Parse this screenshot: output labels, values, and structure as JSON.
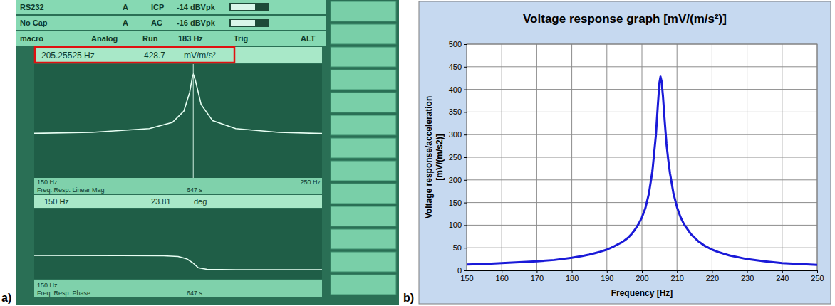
{
  "panel_labels": [
    "a)",
    "b)"
  ],
  "screen": {
    "status_rows": [
      [
        "RS232",
        "A",
        "ICP",
        "-14 dBVpk"
      ],
      [
        "No Cap",
        "A",
        "AC",
        "-16 dBVpk"
      ],
      [
        "macro",
        "Analog",
        "Run",
        "183 Hz",
        "Trig",
        "ALT"
      ]
    ],
    "readout_1": [
      "205.25525 Hz",
      "428.7",
      "mV/m/s²"
    ],
    "plot_1_footer": [
      "150 Hz",
      "Freq. Resp. Linear Mag",
      "647 s",
      "250 Hz"
    ],
    "readout_2": [
      "150 Hz",
      "23.81",
      "deg"
    ],
    "plot_2_footer": [
      "150 Hz",
      "Freq. Resp. Phase",
      "647 s"
    ],
    "cursor_x": 205.25525,
    "magnitude": {
      "type": "line",
      "xlim": [
        150,
        250
      ],
      "ylim": [
        -300,
        500
      ],
      "x": [
        150,
        170,
        190,
        198,
        202,
        204,
        205,
        205.3,
        206,
        208,
        212,
        220,
        235,
        250
      ],
      "values": [
        13,
        20,
        46,
        90,
        170,
        300,
        415,
        428,
        385,
        215,
        102,
        46,
        20,
        12
      ]
    },
    "phase": {
      "type": "line",
      "xlim": [
        150,
        250
      ],
      "ylim": [
        -270,
        600
      ],
      "x": [
        150,
        180,
        195,
        200,
        203,
        205,
        207,
        210,
        220,
        250
      ],
      "values": [
        23.81,
        22,
        18,
        10,
        -20,
        -66,
        -130,
        -150,
        -155,
        -156
      ]
    }
  },
  "chart_data": {
    "type": "line",
    "title": "Voltage response graph [mV/(m/s²)]",
    "x_label": "Frequency [Hz]",
    "y_label": "Voltage response/acceleration [mV/(m/s2)]",
    "x": [
      150,
      155,
      160,
      165,
      170,
      175,
      180,
      183,
      185,
      188,
      190,
      192,
      194,
      195,
      196,
      197,
      198,
      199,
      200,
      201,
      202,
      203,
      204,
      204.5,
      205,
      205.3,
      205.6,
      206,
      206.5,
      207,
      207.5,
      208,
      209,
      210,
      211,
      212,
      214,
      216,
      218,
      220,
      222,
      225,
      230,
      235,
      240,
      245,
      250
    ],
    "values": [
      13,
      14,
      16,
      18,
      20,
      23,
      28,
      32,
      35,
      41,
      46,
      53,
      61,
      66,
      72,
      80,
      90,
      102,
      117,
      138,
      170,
      220,
      300,
      360,
      415,
      428,
      418,
      385,
      330,
      280,
      245,
      215,
      170,
      140,
      118,
      102,
      80,
      65,
      54,
      46,
      40,
      33,
      25,
      20,
      16,
      14,
      12
    ],
    "color": "#1a1ad8",
    "xlim": [
      150,
      250
    ],
    "xticks": [
      150,
      160,
      170,
      180,
      190,
      200,
      210,
      220,
      230,
      240,
      250
    ],
    "ylim": [
      0,
      500
    ],
    "yticks": [
      0,
      50,
      100,
      150,
      200,
      250,
      300,
      350,
      400,
      450,
      500
    ],
    "grid": true
  }
}
